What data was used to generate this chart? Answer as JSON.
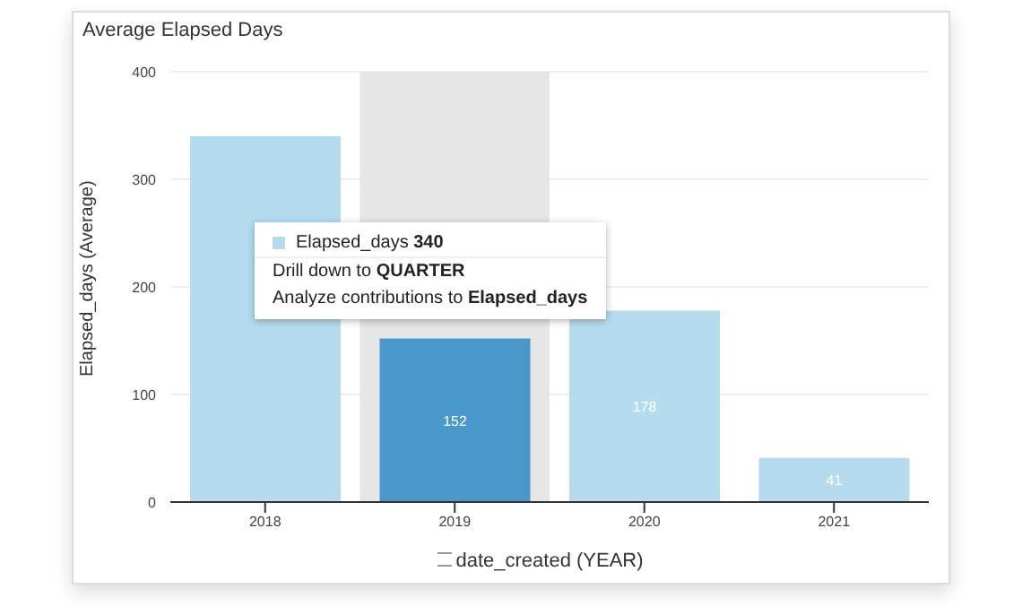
{
  "chart_data": {
    "type": "bar",
    "title": "Average Elapsed Days",
    "xlabel": "date_created (YEAR)",
    "ylabel": "Elapsed_days (Average)",
    "categories": [
      "2018",
      "2019",
      "2020",
      "2021"
    ],
    "values": [
      340,
      152,
      178,
      41
    ],
    "colors": [
      "#b5dbef",
      "#4a98c9",
      "#b5dbef",
      "#b5dbef"
    ],
    "value_labels": [
      null,
      "152",
      "178",
      "41"
    ],
    "ylim": [
      0,
      400
    ],
    "yticks": [
      0,
      100,
      200,
      300,
      400
    ],
    "grid": "y",
    "bands": [
      {
        "axis": "x",
        "from": "2019",
        "to": "2019",
        "color": "#e6e6e6"
      }
    ],
    "annotations": [
      "Elapsed_days 340",
      "Drill down to QUARTER",
      "Analyze contributions to Elapsed_days"
    ]
  }
}
